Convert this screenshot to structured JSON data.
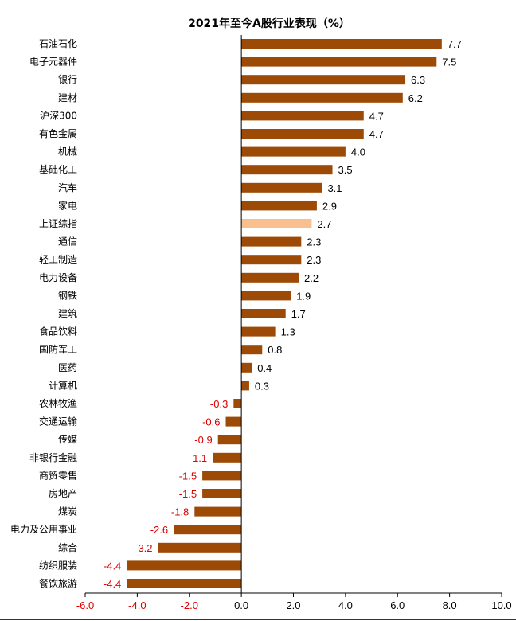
{
  "chart_data": {
    "type": "bar",
    "orientation": "horizontal",
    "title": "2021年至今A股行业表现（%）",
    "categories": [
      "石油石化",
      "电子元器件",
      "银行",
      "建材",
      "沪深300",
      "有色金属",
      "机械",
      "基础化工",
      "汽车",
      "家电",
      "上证综指",
      "通信",
      "轻工制造",
      "电力设备",
      "钢铁",
      "建筑",
      "食品饮料",
      "国防军工",
      "医药",
      "计算机",
      "农林牧渔",
      "交通运输",
      "传媒",
      "非银行金融",
      "商贸零售",
      "房地产",
      "煤炭",
      "电力及公用事业",
      "综合",
      "纺织服装",
      "餐饮旅游"
    ],
    "values": [
      7.7,
      7.5,
      6.3,
      6.2,
      4.7,
      4.7,
      4.0,
      3.5,
      3.1,
      2.9,
      2.7,
      2.3,
      2.3,
      2.2,
      1.9,
      1.7,
      1.3,
      0.8,
      0.4,
      0.3,
      -0.3,
      -0.6,
      -0.9,
      -1.1,
      -1.5,
      -1.5,
      -1.8,
      -2.6,
      -3.2,
      -4.4,
      -4.4
    ],
    "value_labels": [
      "7.7",
      "7.5",
      "6.3",
      "6.2",
      "4.7",
      "4.7",
      "4.0",
      "3.5",
      "3.1",
      "2.9",
      "2.7",
      "2.3",
      "2.3",
      "2.2",
      "1.9",
      "1.7",
      "1.3",
      "0.8",
      "0.4",
      "0.3",
      "-0.3",
      "-0.6",
      "-0.9",
      "-1.1",
      "-1.5",
      "-1.5",
      "-1.8",
      "-2.6",
      "-3.2",
      "-4.4",
      "-4.4"
    ],
    "xlim": [
      -6.0,
      10.0
    ],
    "xticks": [
      -6.0,
      -4.0,
      -2.0,
      0.0,
      2.0,
      4.0,
      6.0,
      8.0,
      10.0
    ],
    "xtick_labels": [
      "-6.0",
      "-4.0",
      "-2.0",
      "0.0",
      "2.0",
      "4.0",
      "6.0",
      "8.0",
      "10.0"
    ],
    "highlight_category": "上证综指",
    "grid": false,
    "colors": {
      "bar": "#9C4A05",
      "highlight": "#F9C08F",
      "negative_text": "#E00000",
      "positive_text": "#000000",
      "axis": "#000000",
      "page_bottom_rule": "#B00000"
    }
  }
}
